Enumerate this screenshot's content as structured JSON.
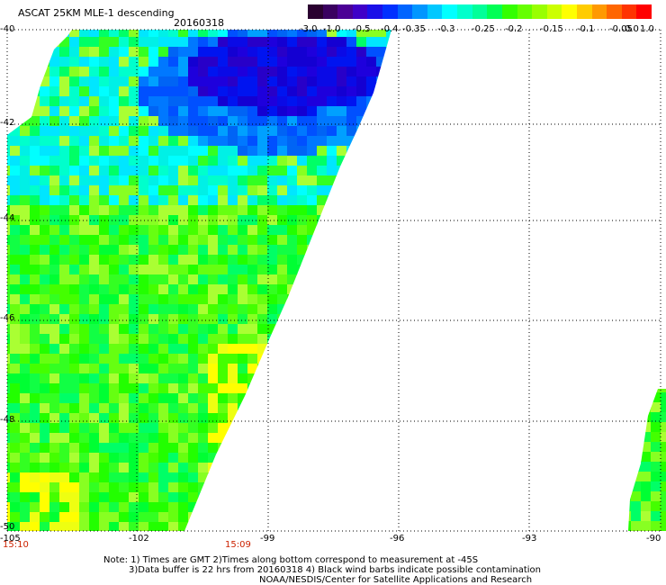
{
  "title": "ASCAT 25KM MLE-1 descending",
  "date": "20160318",
  "colorbar": {
    "colors": [
      "#2a0030",
      "#3a0060",
      "#4b0095",
      "#3f00c8",
      "#1a10e8",
      "#0030ff",
      "#0064ff",
      "#0096ff",
      "#00c8ff",
      "#00ffff",
      "#00ffcc",
      "#00ff99",
      "#00ff55",
      "#33ff00",
      "#66ff00",
      "#99ff00",
      "#ccff00",
      "#ffff00",
      "#ffcc00",
      "#ff9900",
      "#ff6600",
      "#ff3300",
      "#ff0000"
    ],
    "labels": [
      "-3.0",
      "-1.0",
      "-0.5",
      "-0.4",
      "-0.35",
      "-0.3",
      "-0.25",
      "-0.2",
      "-0.15",
      "-0.1",
      "-0.05",
      "0.0",
      "1.0"
    ]
  },
  "latitudes": [
    "-40",
    "-42",
    "-44",
    "-46",
    "-48",
    "-50"
  ],
  "longitudes": [
    "-105",
    "-102",
    "-99",
    "-96",
    "-93",
    "-90"
  ],
  "times": [
    "15:10",
    "15:09"
  ],
  "notes": [
    "Note: 1) Times are GMT 2)Times along bottom correspond to measurement at -45S",
    "3)Data buffer is 22 hrs from 20160318 4) Black wind barbs indicate possible contamination",
    "NOAA/NESDIS/Center for Satellite Applications and Research"
  ]
}
